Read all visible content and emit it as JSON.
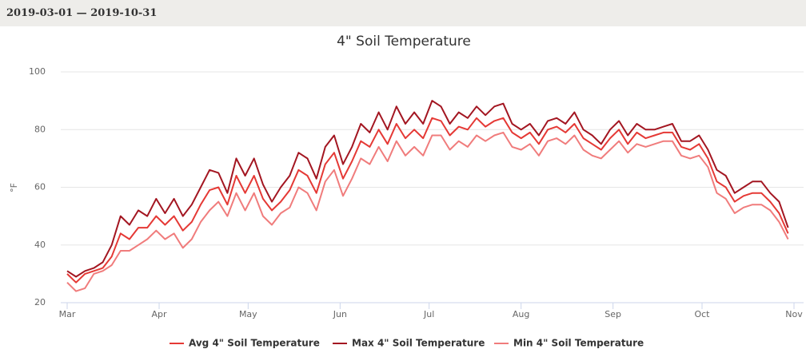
{
  "header": {
    "date_range": "2019-03-01 — 2019-10-31"
  },
  "chart_data": {
    "type": "line",
    "title": "4\" Soil Temperature",
    "y_label": "°F",
    "x": [
      "2019-03-01",
      "2019-03-04",
      "2019-03-07",
      "2019-03-10",
      "2019-03-13",
      "2019-03-16",
      "2019-03-19",
      "2019-03-22",
      "2019-03-25",
      "2019-03-28",
      "2019-03-31",
      "2019-04-03",
      "2019-04-06",
      "2019-04-09",
      "2019-04-12",
      "2019-04-15",
      "2019-04-18",
      "2019-04-21",
      "2019-04-24",
      "2019-04-27",
      "2019-04-30",
      "2019-05-03",
      "2019-05-06",
      "2019-05-09",
      "2019-05-12",
      "2019-05-15",
      "2019-05-18",
      "2019-05-21",
      "2019-05-24",
      "2019-05-27",
      "2019-05-30",
      "2019-06-02",
      "2019-06-05",
      "2019-06-08",
      "2019-06-11",
      "2019-06-14",
      "2019-06-17",
      "2019-06-20",
      "2019-06-23",
      "2019-06-26",
      "2019-06-29",
      "2019-07-02",
      "2019-07-05",
      "2019-07-08",
      "2019-07-11",
      "2019-07-14",
      "2019-07-17",
      "2019-07-20",
      "2019-07-23",
      "2019-07-26",
      "2019-07-29",
      "2019-08-01",
      "2019-08-04",
      "2019-08-07",
      "2019-08-10",
      "2019-08-13",
      "2019-08-16",
      "2019-08-19",
      "2019-08-22",
      "2019-08-25",
      "2019-08-28",
      "2019-08-31",
      "2019-09-03",
      "2019-09-06",
      "2019-09-09",
      "2019-09-12",
      "2019-09-15",
      "2019-09-18",
      "2019-09-21",
      "2019-09-24",
      "2019-09-27",
      "2019-09-30",
      "2019-10-03",
      "2019-10-06",
      "2019-10-09",
      "2019-10-12",
      "2019-10-15",
      "2019-10-18",
      "2019-10-21",
      "2019-10-24",
      "2019-10-27",
      "2019-10-30"
    ],
    "series": [
      {
        "name": "Avg 4\" Soil Temperature",
        "color": "#e53935",
        "values": [
          30,
          27,
          30,
          31,
          32,
          36,
          44,
          42,
          46,
          46,
          50,
          47,
          50,
          45,
          48,
          54,
          59,
          60,
          54,
          64,
          58,
          64,
          56,
          52,
          55,
          59,
          66,
          64,
          58,
          68,
          72,
          63,
          69,
          76,
          74,
          80,
          75,
          82,
          77,
          80,
          77,
          84,
          83,
          78,
          81,
          80,
          84,
          81,
          83,
          84,
          79,
          77,
          79,
          75,
          80,
          81,
          79,
          82,
          77,
          75,
          73,
          77,
          80,
          75,
          79,
          77,
          78,
          79,
          79,
          74,
          73,
          75,
          70,
          62,
          60,
          55,
          57,
          58,
          58,
          55,
          51,
          44
        ]
      },
      {
        "name": "Max 4\" Soil Temperature",
        "color": "#a31621",
        "values": [
          31,
          29,
          31,
          32,
          34,
          40,
          50,
          47,
          52,
          50,
          56,
          51,
          56,
          50,
          54,
          60,
          66,
          65,
          58,
          70,
          64,
          70,
          61,
          55,
          60,
          64,
          72,
          70,
          63,
          74,
          78,
          68,
          74,
          82,
          79,
          86,
          80,
          88,
          82,
          86,
          82,
          90,
          88,
          82,
          86,
          84,
          88,
          85,
          88,
          89,
          82,
          80,
          82,
          78,
          83,
          84,
          82,
          86,
          80,
          78,
          75,
          80,
          83,
          78,
          82,
          80,
          80,
          81,
          82,
          76,
          76,
          78,
          73,
          66,
          64,
          58,
          60,
          62,
          62,
          58,
          55,
          46
        ]
      },
      {
        "name": "Min 4\" Soil Temperature",
        "color": "#f07c7c",
        "values": [
          27,
          24,
          25,
          30,
          31,
          33,
          38,
          38,
          40,
          42,
          45,
          42,
          44,
          39,
          42,
          48,
          52,
          55,
          50,
          58,
          52,
          58,
          50,
          47,
          51,
          53,
          60,
          58,
          52,
          62,
          66,
          57,
          63,
          70,
          68,
          74,
          69,
          76,
          71,
          74,
          71,
          78,
          78,
          73,
          76,
          74,
          78,
          76,
          78,
          79,
          74,
          73,
          75,
          71,
          76,
          77,
          75,
          78,
          73,
          71,
          70,
          73,
          76,
          72,
          75,
          74,
          75,
          76,
          76,
          71,
          70,
          71,
          67,
          58,
          56,
          51,
          53,
          54,
          54,
          52,
          48,
          42
        ]
      }
    ],
    "xlim": [
      "2019-03-01",
      "2019-11-01"
    ],
    "xticks": [
      {
        "value": "2019-03-01",
        "label": "Mar"
      },
      {
        "value": "2019-04-01",
        "label": "Apr"
      },
      {
        "value": "2019-05-01",
        "label": "May"
      },
      {
        "value": "2019-06-01",
        "label": "Jun"
      },
      {
        "value": "2019-07-01",
        "label": "Jul"
      },
      {
        "value": "2019-08-01",
        "label": "Aug"
      },
      {
        "value": "2019-09-01",
        "label": "Sep"
      },
      {
        "value": "2019-10-01",
        "label": "Oct"
      },
      {
        "value": "2019-11-01",
        "label": "Nov"
      }
    ],
    "ylim": [
      20,
      100
    ],
    "yticks": [
      20,
      40,
      60,
      80,
      100
    ],
    "grid": true,
    "legend": "bottom"
  }
}
